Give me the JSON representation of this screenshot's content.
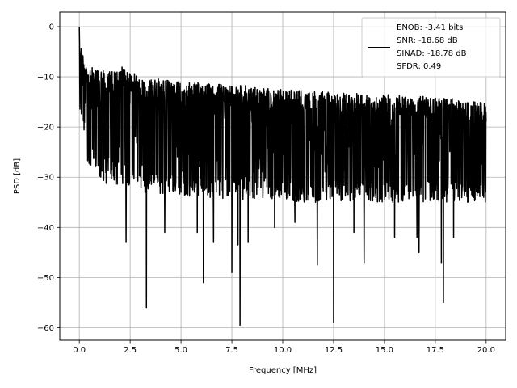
{
  "chart_data": {
    "type": "line",
    "title": "",
    "xlabel": "Frequency [MHz]",
    "ylabel": "PSD [dB]",
    "xlim": [
      -0.96,
      20.96
    ],
    "ylim": [
      -62.5,
      2.9
    ],
    "x_ticks": [
      0.0,
      2.5,
      5.0,
      7.5,
      10.0,
      12.5,
      15.0,
      17.5,
      20.0
    ],
    "x_tick_labels": [
      "0.0",
      "2.5",
      "5.0",
      "7.5",
      "10.0",
      "12.5",
      "15.0",
      "17.5",
      "20.0"
    ],
    "y_ticks": [
      0,
      -10,
      -20,
      -30,
      -40,
      -50,
      -60
    ],
    "y_tick_labels": [
      "0",
      "−10",
      "−20",
      "−30",
      "−40",
      "−50",
      "−60"
    ],
    "grid": true,
    "legend_position": "top-right",
    "series": [
      {
        "name": "ENOB: -3.41 bits\nSNR: -18.68 dB\nSINAD: -18.78 dB\nSFDR: 0.49",
        "legend_lines": [
          "ENOB: -3.41 bits",
          "SNR: -18.68 dB",
          "SINAD: -18.78 dB",
          "SFDR: 0.49"
        ],
        "color": "#000000",
        "x_range": [
          0,
          20
        ],
        "envelope_top": [
          [
            0.0,
            0
          ],
          [
            0.1,
            -4
          ],
          [
            0.3,
            -7
          ],
          [
            0.5,
            -8
          ],
          [
            1.0,
            -8.5
          ],
          [
            2.0,
            -9
          ],
          [
            2.1,
            -8
          ],
          [
            3.0,
            -10
          ],
          [
            5.0,
            -11
          ],
          [
            7.5,
            -11.5
          ],
          [
            10.0,
            -12.5
          ],
          [
            12.5,
            -13
          ],
          [
            15.0,
            -13.5
          ],
          [
            17.5,
            -14
          ],
          [
            20.0,
            -15
          ]
        ],
        "envelope_bottom": [
          [
            0.0,
            -16
          ],
          [
            0.3,
            -26
          ],
          [
            1.0,
            -31
          ],
          [
            3.0,
            -33
          ],
          [
            6.0,
            -34
          ],
          [
            10.0,
            -35
          ],
          [
            15.0,
            -35
          ],
          [
            20.0,
            -35
          ]
        ],
        "deep_nulls": [
          [
            3.3,
            -56
          ],
          [
            6.1,
            -51
          ],
          [
            7.5,
            -49
          ],
          [
            7.9,
            -59.5
          ],
          [
            12.5,
            -59
          ],
          [
            17.9,
            -55
          ],
          [
            11.7,
            -47.5
          ],
          [
            16.7,
            -45
          ],
          [
            17.8,
            -47
          ],
          [
            14.0,
            -47
          ],
          [
            2.3,
            -43
          ],
          [
            7.8,
            -43.5
          ],
          [
            5.8,
            -41
          ],
          [
            6.6,
            -43
          ],
          [
            8.3,
            -43
          ],
          [
            4.2,
            -41
          ],
          [
            9.6,
            -40
          ],
          [
            10.6,
            -39
          ],
          [
            16.6,
            -42
          ],
          [
            18.4,
            -42
          ],
          [
            15.5,
            -42
          ],
          [
            13.5,
            -41
          ]
        ]
      }
    ]
  }
}
